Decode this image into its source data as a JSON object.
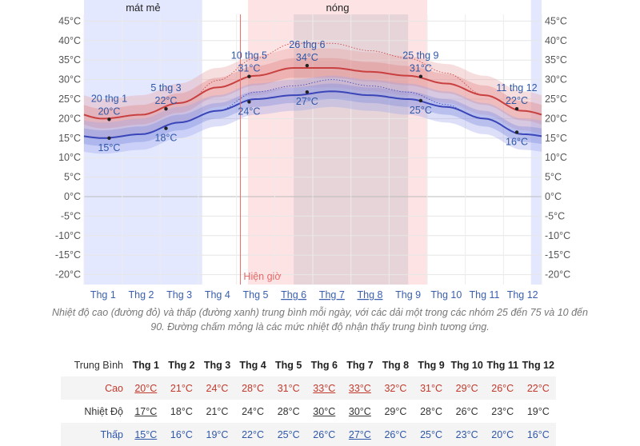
{
  "seasons": [
    {
      "label": "mát mẻ",
      "from": 0,
      "to": 3.1,
      "color": "#e4e8ff"
    },
    {
      "label": "nóng",
      "from": 4.3,
      "to": 9.0,
      "color": "#fde3e3"
    }
  ],
  "now_marker": {
    "label": "Hiện giờ",
    "month": 4.1
  },
  "highlight_months": {
    "from": 5.5,
    "to": 8.5
  },
  "chart_data": {
    "type": "line",
    "ylim": [
      -22,
      46
    ],
    "y_ticks": [
      45,
      40,
      35,
      30,
      25,
      20,
      15,
      10,
      5,
      0,
      -5,
      -10,
      -15,
      -20
    ],
    "y_tick_labels": [
      "45°C",
      "40°C",
      "35°C",
      "30°C",
      "25°C",
      "20°C",
      "15°C",
      "10°C",
      "5°C",
      "0°C",
      "-5°C",
      "-10°C",
      "-15°C",
      "-20°C"
    ],
    "categories": [
      "Thg 1",
      "Thg 2",
      "Thg 3",
      "Thg 4",
      "Thg 5",
      "Thg 6",
      "Thg 7",
      "Thg 8",
      "Thg 9",
      "Thg 10",
      "Thg 11",
      "Thg 12"
    ],
    "underlined_months": [
      5,
      6,
      7
    ],
    "series": [
      {
        "values": [
          20,
          21,
          24,
          28,
          31,
          33,
          33,
          32,
          31,
          29,
          26,
          22
        ],
        "color": "#c94040"
      },
      {
        "values": [
          15,
          16,
          19,
          22,
          25,
          26,
          27,
          26,
          25,
          23,
          20,
          16
        ],
        "color": "#3a46b8"
      }
    ],
    "annotations": [
      {
        "date": "20 thg 1",
        "value": "20°C",
        "x": 0.66,
        "y": 19.8,
        "kind": "high"
      },
      {
        "value": "15°C",
        "x": 0.66,
        "y": 15,
        "kind": "low"
      },
      {
        "date": "5 thg 3",
        "value": "22°C",
        "x": 2.15,
        "y": 22.5,
        "kind": "high"
      },
      {
        "value": "18°C",
        "x": 2.15,
        "y": 17.5,
        "kind": "low"
      },
      {
        "date": "10 thg 5",
        "value": "31°C",
        "x": 4.33,
        "y": 30.8,
        "kind": "high"
      },
      {
        "value": "24°C",
        "x": 4.33,
        "y": 24.3,
        "kind": "low"
      },
      {
        "date": "26 thg 6",
        "value": "34°C",
        "x": 5.85,
        "y": 33.6,
        "kind": "high"
      },
      {
        "value": "27°C",
        "x": 5.85,
        "y": 26.8,
        "kind": "low"
      },
      {
        "date": "25 thg 9",
        "value": "31°C",
        "x": 8.83,
        "y": 30.8,
        "kind": "high"
      },
      {
        "value": "25°C",
        "x": 8.83,
        "y": 24.6,
        "kind": "low"
      },
      {
        "date": "11 thg 12",
        "value": "22°C",
        "x": 11.35,
        "y": 22.5,
        "kind": "high"
      },
      {
        "value": "16°C",
        "x": 11.35,
        "y": 16.5,
        "kind": "low"
      }
    ]
  },
  "caption": "Nhiệt độ cao (đường đỏ) và thấp (đường xanh) trung bình mỗi ngày, với các dải một trong các nhóm 25 đến 75 và 10 đến 90. Đường chấm mỏng là các mức nhiệt độ nhận thấy trung bình tương ứng.",
  "table": {
    "header_label": "Trung Bình",
    "months": [
      "Thg 1",
      "Thg 2",
      "Thg 3",
      "Thg 4",
      "Thg 5",
      "Thg 6",
      "Thg 7",
      "Thg 8",
      "Thg 9",
      "Thg 10",
      "Thg 11",
      "Thg 12"
    ],
    "rows": [
      {
        "key": "hi",
        "label": "Cao",
        "values": [
          "20°C",
          "21°C",
          "24°C",
          "28°C",
          "31°C",
          "33°C",
          "33°C",
          "32°C",
          "31°C",
          "29°C",
          "26°C",
          "22°C"
        ],
        "underlined": [
          0,
          5,
          6
        ]
      },
      {
        "key": "avg",
        "label": "Nhiệt Độ",
        "values": [
          "17°C",
          "18°C",
          "21°C",
          "24°C",
          "28°C",
          "30°C",
          "30°C",
          "29°C",
          "28°C",
          "26°C",
          "23°C",
          "19°C"
        ],
        "underlined": [
          0,
          5,
          6
        ]
      },
      {
        "key": "lo",
        "label": "Thấp",
        "values": [
          "15°C",
          "16°C",
          "19°C",
          "22°C",
          "25°C",
          "26°C",
          "27°C",
          "26°C",
          "25°C",
          "23°C",
          "20°C",
          "16°C"
        ],
        "underlined": [
          0,
          6
        ]
      }
    ]
  }
}
